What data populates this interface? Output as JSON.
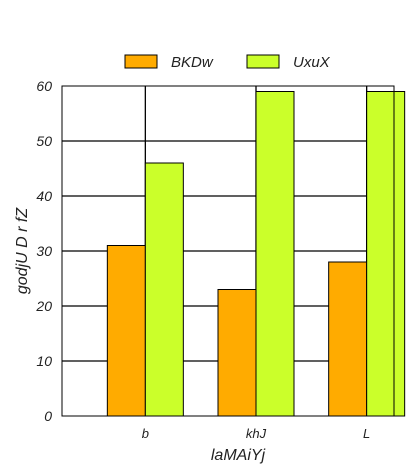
{
  "chart_data": {
    "type": "bar",
    "categories": [
      "b",
      "khJ",
      "L"
    ],
    "series": [
      {
        "name": "BKDw",
        "values": [
          31,
          23,
          28
        ],
        "color": "#ffab00"
      },
      {
        "name": "UxuX",
        "values": [
          46,
          59,
          59
        ],
        "color": "#cbff2a"
      }
    ],
    "title": "",
    "xlabel": "laMAiYj",
    "ylabel": "godjU D r fZ",
    "ylim": [
      0,
      60
    ],
    "yticks": [
      0,
      10,
      20,
      30,
      40,
      50,
      60
    ],
    "grid": true,
    "legend_position": "top-center"
  }
}
